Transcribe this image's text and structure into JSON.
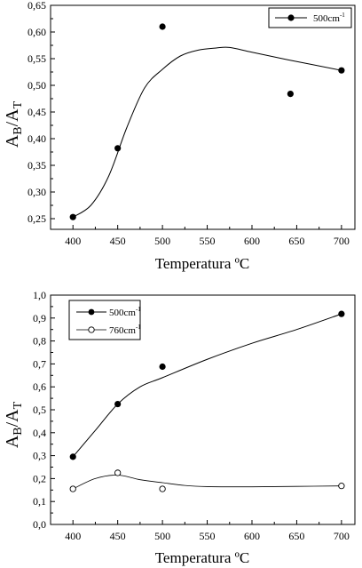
{
  "chart_data": [
    {
      "type": "scatter",
      "xlabel": "Temperatura ºC",
      "ylabel": "A",
      "ylabel_sub_1": "B",
      "ylabel_mid": "/A",
      "ylabel_sub_2": "T",
      "xlim": [
        375,
        715
      ],
      "ylim": [
        0.23,
        0.65
      ],
      "xticks": [
        400,
        450,
        500,
        550,
        600,
        650,
        700
      ],
      "yticks": [
        0.25,
        0.3,
        0.35,
        0.4,
        0.45,
        0.5,
        0.55,
        0.6,
        0.65
      ],
      "ytick_labels": [
        "0,25",
        "0,30",
        "0,35",
        "0,40",
        "0,45",
        "0,50",
        "0,55",
        "0,60",
        "0,65"
      ],
      "legend_position": "top-right",
      "series": [
        {
          "name": "500cm",
          "name_sup": "-1",
          "marker": "filled",
          "x": [
            400,
            450,
            500,
            643,
            700
          ],
          "y": [
            0.253,
            0.382,
            0.61,
            0.484,
            0.528
          ],
          "fit_x": [
            400,
            420,
            440,
            460,
            480,
            500,
            520,
            540,
            560,
            575,
            600,
            640,
            700
          ],
          "fit_y": [
            0.253,
            0.275,
            0.33,
            0.42,
            0.495,
            0.53,
            0.555,
            0.566,
            0.57,
            0.571,
            0.562,
            0.548,
            0.528
          ]
        }
      ]
    },
    {
      "type": "scatter",
      "xlabel": "Temperatura ºC",
      "ylabel": "A",
      "ylabel_sub_1": "B",
      "ylabel_mid": "/A",
      "ylabel_sub_2": "T",
      "xlim": [
        375,
        715
      ],
      "ylim": [
        0.0,
        1.0
      ],
      "xticks": [
        400,
        450,
        500,
        550,
        600,
        650,
        700
      ],
      "yticks": [
        0.0,
        0.1,
        0.2,
        0.3,
        0.4,
        0.5,
        0.6,
        0.7,
        0.8,
        0.9,
        1.0
      ],
      "ytick_labels": [
        "0,0",
        "0,1",
        "0,2",
        "0,3",
        "0,4",
        "0,5",
        "0,6",
        "0,7",
        "0,8",
        "0,9",
        "1,0"
      ],
      "legend_position": "top-left",
      "series": [
        {
          "name": "500cm",
          "name_sup": "-1",
          "marker": "filled",
          "x": [
            400,
            450,
            500,
            700
          ],
          "y": [
            0.295,
            0.525,
            0.688,
            0.918
          ],
          "fit_x": [
            400,
            425,
            450,
            475,
            500,
            550,
            600,
            650,
            700
          ],
          "fit_y": [
            0.295,
            0.41,
            0.525,
            0.6,
            0.64,
            0.72,
            0.79,
            0.85,
            0.918
          ]
        },
        {
          "name": "760cm",
          "name_sup": "-1",
          "marker": "open",
          "x": [
            400,
            450,
            500,
            700
          ],
          "y": [
            0.155,
            0.225,
            0.155,
            0.168
          ],
          "fit_x": [
            400,
            425,
            450,
            475,
            500,
            525,
            550,
            600,
            650,
            700
          ],
          "fit_y": [
            0.155,
            0.2,
            0.215,
            0.195,
            0.182,
            0.17,
            0.165,
            0.164,
            0.166,
            0.168
          ]
        }
      ]
    }
  ]
}
